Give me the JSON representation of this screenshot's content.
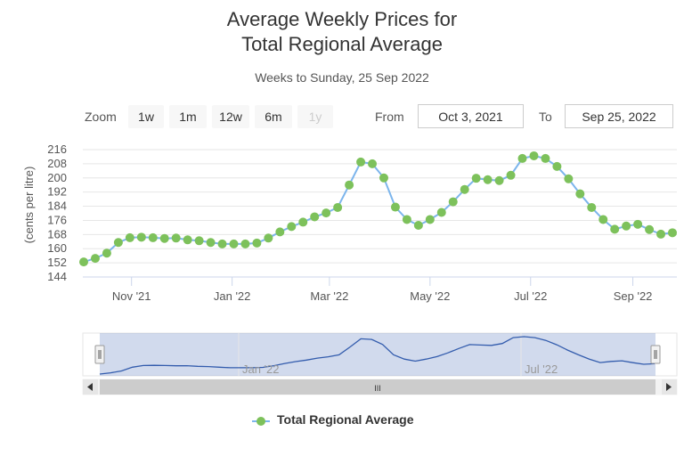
{
  "chart_data": {
    "type": "line",
    "title": [
      "Average Weekly Prices for",
      "Total Regional Average"
    ],
    "subtitle": "Weeks to Sunday, 25 Sep 2022",
    "ylabel": "(cents per litre)",
    "ylim": [
      144,
      216
    ],
    "yticks": [
      144,
      152,
      160,
      168,
      176,
      184,
      192,
      200,
      208,
      216
    ],
    "xlim": [
      "2021-10-03",
      "2022-09-25"
    ],
    "xticks": [
      {
        "date": "2021-11-01",
        "label": "Nov '21"
      },
      {
        "date": "2022-01-01",
        "label": "Jan '22"
      },
      {
        "date": "2022-03-01",
        "label": "Mar '22"
      },
      {
        "date": "2022-05-01",
        "label": "May '22"
      },
      {
        "date": "2022-07-01",
        "label": "Jul '22"
      },
      {
        "date": "2022-09-01",
        "label": "Sep '22"
      }
    ],
    "grid": true,
    "legend_position": "bottom-center",
    "series": [
      {
        "name": "Total Regional Average",
        "color": "#7cb5ec",
        "marker_color": "#7dc15b",
        "x": [
          "2021-10-03",
          "2021-10-10",
          "2021-10-17",
          "2021-10-24",
          "2021-10-31",
          "2021-11-07",
          "2021-11-14",
          "2021-11-21",
          "2021-11-28",
          "2021-12-05",
          "2021-12-12",
          "2021-12-19",
          "2021-12-26",
          "2022-01-02",
          "2022-01-09",
          "2022-01-16",
          "2022-01-23",
          "2022-01-30",
          "2022-02-06",
          "2022-02-13",
          "2022-02-20",
          "2022-02-27",
          "2022-03-06",
          "2022-03-13",
          "2022-03-20",
          "2022-03-27",
          "2022-04-03",
          "2022-04-10",
          "2022-04-17",
          "2022-04-24",
          "2022-05-01",
          "2022-05-08",
          "2022-05-15",
          "2022-05-22",
          "2022-05-29",
          "2022-06-05",
          "2022-06-12",
          "2022-06-19",
          "2022-06-26",
          "2022-07-03",
          "2022-07-10",
          "2022-07-17",
          "2022-07-24",
          "2022-07-31",
          "2022-08-07",
          "2022-08-14",
          "2022-08-21",
          "2022-08-28",
          "2022-09-04",
          "2022-09-11",
          "2022-09-18",
          "2022-09-25"
        ],
        "values": [
          152.5,
          154.5,
          157.5,
          163.5,
          166.2,
          166.5,
          166.2,
          165.8,
          166.0,
          165.0,
          164.5,
          163.5,
          162.7,
          162.7,
          162.7,
          163.2,
          166.0,
          169.5,
          172.5,
          175.0,
          178.0,
          180.2,
          183.3,
          196.0,
          209.0,
          208.0,
          200.0,
          183.5,
          176.5,
          173.2,
          176.5,
          180.5,
          186.5,
          193.5,
          199.8,
          199.0,
          198.5,
          201.5,
          211.0,
          212.5,
          211.0,
          206.5,
          199.5,
          191.0,
          183.3,
          176.5,
          171.0,
          172.8,
          173.8,
          170.8,
          168.2,
          169.0
        ]
      }
    ]
  },
  "navigator": {
    "xtick_labels": [
      "Jan '22",
      "Jul '22"
    ],
    "scrollbar_glyph": "III",
    "left_arrow": "◀",
    "right_arrow": "▶",
    "handle_glyph": "||"
  },
  "range_selector": {
    "zoom_label": "Zoom",
    "buttons": [
      "1w",
      "1m",
      "12w",
      "6m",
      "1y"
    ],
    "from_label": "From",
    "from_value": "Oct 3, 2021",
    "to_label": "To",
    "to_value": "Sep 25, 2022"
  },
  "legend": {
    "label": "Total Regional Average"
  }
}
